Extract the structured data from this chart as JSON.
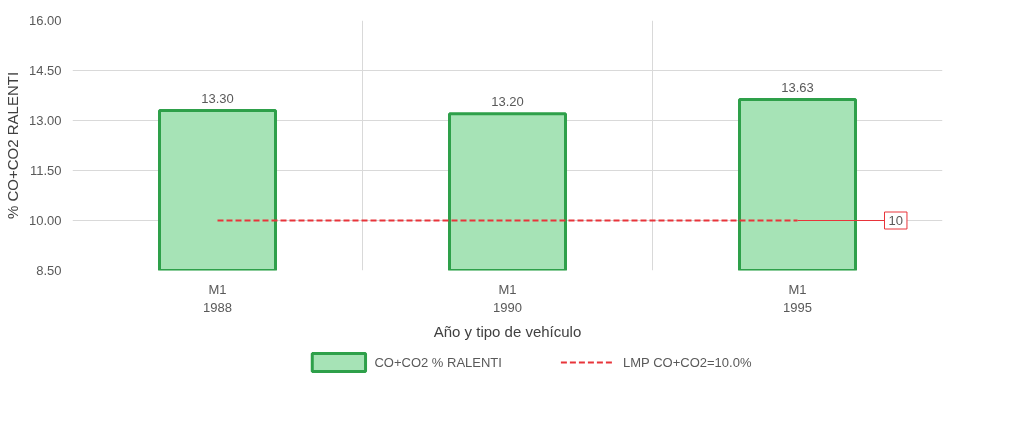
{
  "chart_data": {
    "type": "bar",
    "categories": [
      "M1\n1988",
      "M1\n1990",
      "M1\n1995"
    ],
    "xlabel": "Año y tipo de vehículo",
    "ylabel": "% CO+CO2 RALENTI",
    "ylim": [
      8.5,
      16
    ],
    "yticks": [
      {
        "value": 8.5,
        "label": "8.50"
      },
      {
        "value": 10,
        "label": "10.00"
      },
      {
        "value": 11.5,
        "label": "11.50"
      },
      {
        "value": 13,
        "label": "13.00"
      },
      {
        "value": 14.5,
        "label": "14.50"
      },
      {
        "value": 16,
        "label": "16.00"
      }
    ],
    "grid": true,
    "legend": "bottom",
    "series": [
      {
        "name": "CO+CO2 % RALENTI",
        "color": "#a6e3b6",
        "values": [
          13.3,
          13.2,
          13.63
        ],
        "value_labels": [
          "13.30",
          "13.20",
          "13.63"
        ]
      },
      {
        "name": "LMP CO+CO2=10.0%",
        "type": "line",
        "line_style": "dashed",
        "color": "#e8343a",
        "values": [
          10,
          10,
          10
        ],
        "value_labels": [
          null,
          null,
          "10"
        ]
      }
    ]
  }
}
